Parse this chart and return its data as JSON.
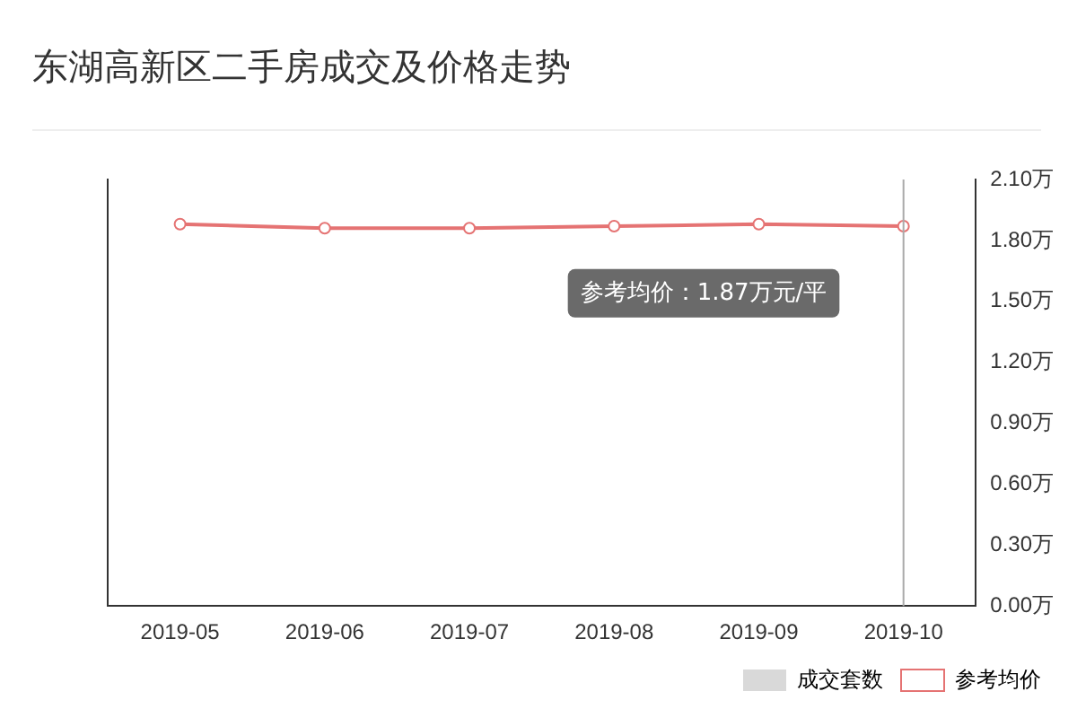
{
  "chart_data": {
    "type": "line",
    "title": "东湖高新区二手房成交及价格走势",
    "categories": [
      "2019-05",
      "2019-06",
      "2019-07",
      "2019-08",
      "2019-09",
      "2019-10"
    ],
    "series": [
      {
        "name": "成交套数",
        "type": "bar",
        "color": "#d9d9d9",
        "values": [
          null,
          null,
          null,
          null,
          null,
          null
        ]
      },
      {
        "name": "参考均价",
        "axis": "y2",
        "color": "#e57373",
        "marker": "circle",
        "values": [
          1.88,
          1.86,
          1.86,
          1.87,
          1.88,
          1.87
        ]
      }
    ],
    "y2lim": [
      0,
      2.1
    ],
    "y2ticks": [
      {
        "value": 0,
        "label": "0.00万"
      },
      {
        "value": 0.3,
        "label": "0.30万"
      },
      {
        "value": 0.6,
        "label": "0.60万"
      },
      {
        "value": 0.9,
        "label": "0.90万"
      },
      {
        "value": 1.2,
        "label": "1.20万"
      },
      {
        "value": 1.5,
        "label": "1.50万"
      },
      {
        "value": 1.8,
        "label": "1.80万"
      },
      {
        "value": 2.1,
        "label": "2.10万"
      }
    ],
    "ref_lines": [
      {
        "axis": "x",
        "value": "2019-10",
        "color": "#aaaaaa"
      }
    ],
    "annotations": [
      "参考均价：1.87万元/平"
    ],
    "legend": "bottom right",
    "grid": false
  }
}
